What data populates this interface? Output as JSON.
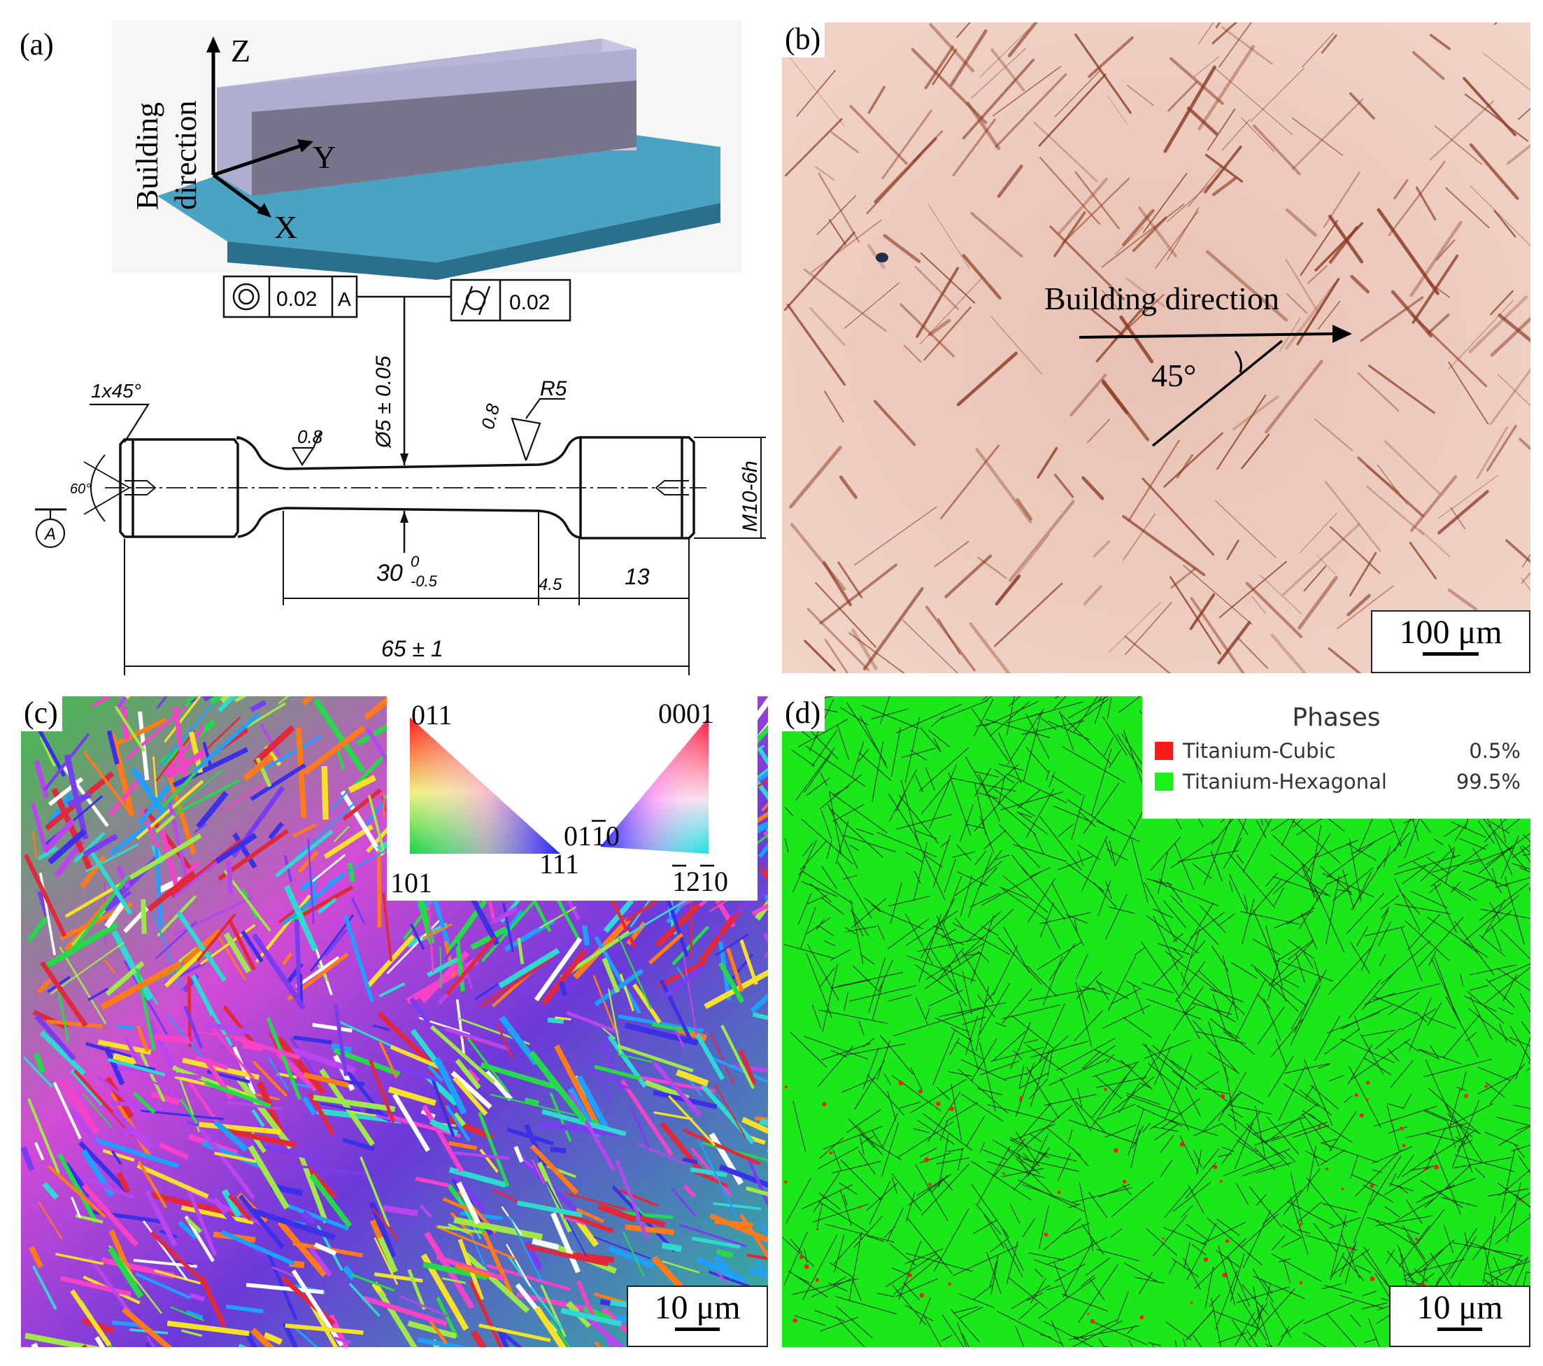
{
  "panel_a": {
    "label": "(a)",
    "axes": {
      "z": "Z",
      "y": "Y",
      "x": "X"
    },
    "building_direction": [
      "Building",
      "direction"
    ],
    "drawing": {
      "coaxiality_tolerance": "0.02",
      "coaxiality_datum": "A",
      "cylindricity_tolerance": "0.02",
      "diameter": "Ø5 ± 0.05",
      "chamfer": "1x45°",
      "roughness_1": "0.8",
      "roughness_2": "0.8",
      "radius": "R5",
      "angle": "60°",
      "datum": "A",
      "thread": "M10-6h",
      "gauge_length": "30",
      "gauge_tol_upper": "0",
      "gauge_tol_lower": "-0.5",
      "fillet_length": "4.5",
      "grip_length": "13",
      "total_length": "65 ± 1"
    }
  },
  "panel_b": {
    "label": "(b)",
    "annotation": "Building direction",
    "angle": "45°",
    "scale": "100 μm"
  },
  "panel_c": {
    "label": "(c)",
    "cubic_ipf": {
      "top": "011",
      "bottom_left": "101",
      "bottom_right": "111"
    },
    "hex_ipf": {
      "top": "0001",
      "left": "01",
      "left_bar": "1",
      "left_end": "0",
      "bottom_bar1": "1",
      "bottom_mid": "2",
      "bottom_bar2": "1",
      "bottom_end": "0"
    },
    "scale": "10 μm"
  },
  "panel_d": {
    "label": "(d)",
    "legend_title": "Phases",
    "phases": [
      {
        "name": "Titanium-Cubic",
        "percent": "0.5%",
        "color": "#ff1a1a"
      },
      {
        "name": "Titanium-Hexagonal",
        "percent": "99.5%",
        "color": "#1af01a"
      }
    ],
    "scale": "10 μm"
  }
}
